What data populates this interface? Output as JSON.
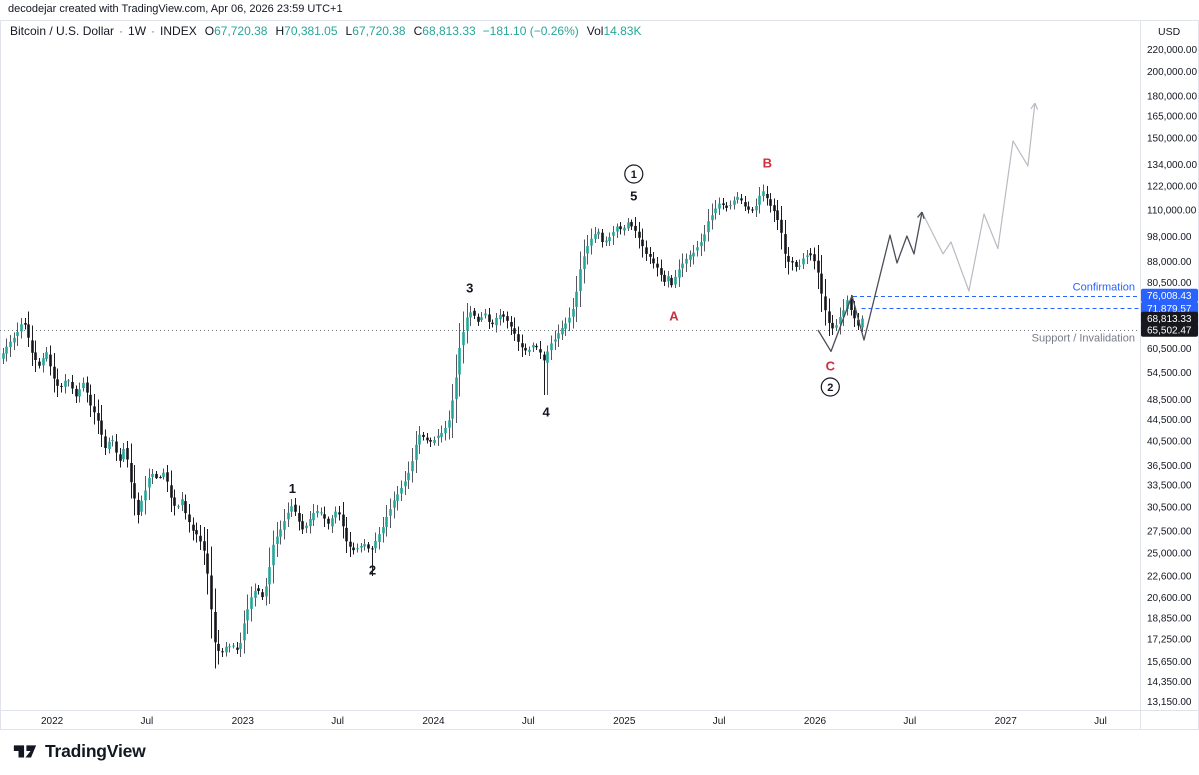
{
  "attribution": "decodejar created with TradingView.com, Apr 06, 2026 23:59 UTC+1",
  "header": {
    "symbol": "Bitcoin / U.S. Dollar",
    "separator": "·",
    "interval": "1W",
    "exchange": "INDEX",
    "ohlc": [
      {
        "label": "O",
        "value": "67,720.38"
      },
      {
        "label": "H",
        "value": "70,381.05"
      },
      {
        "label": "L",
        "value": "67,720.38"
      },
      {
        "label": "C",
        "value": "68,813.33"
      }
    ],
    "change": "−181.10 (−0.26%)",
    "vol_label": "Vol",
    "vol_value": "14.83K"
  },
  "price_axis": {
    "currency_label": "USD"
  },
  "annotations": {
    "confirmation_label": "Confirmation",
    "support_label": "Support / Invalidation"
  },
  "logo": {
    "text": "TradingView"
  },
  "chart_data": {
    "type": "candlestick",
    "symbol": "Bitcoin / U.S. Dollar",
    "timeframe": "1W",
    "scale": "logarithmic",
    "axis": {
      "t_left": 2021.727,
      "t_right": 2027.704,
      "price_top": 250000,
      "price_bottom": 11630
    },
    "y_ticks": [
      [
        "220,000.00",
        220000
      ],
      [
        "200,000.00",
        200000
      ],
      [
        "180,000.00",
        180000
      ],
      [
        "165,000.00",
        165000
      ],
      [
        "150,000.00",
        150000
      ],
      [
        "134,000.00",
        134000
      ],
      [
        "122,000.00",
        122000
      ],
      [
        "110,000.00",
        110000
      ],
      [
        "98,000.00",
        98000
      ],
      [
        "88,000.00",
        88000
      ],
      [
        "80,500.00",
        80500
      ],
      [
        "60,500.00",
        60500
      ],
      [
        "54,500.00",
        54500
      ],
      [
        "48,500.00",
        48500
      ],
      [
        "44,500.00",
        44500
      ],
      [
        "40,500.00",
        40500
      ],
      [
        "36,500.00",
        36500
      ],
      [
        "33,500.00",
        33500
      ],
      [
        "30,500.00",
        30500
      ],
      [
        "27,500.00",
        27500
      ],
      [
        "25,000.00",
        25000
      ],
      [
        "22,600.00",
        22600
      ],
      [
        "20,600.00",
        20600
      ],
      [
        "18,850.00",
        18850
      ],
      [
        "17,250.00",
        17250
      ],
      [
        "15,650.00",
        15650
      ],
      [
        "14,350.00",
        14350
      ],
      [
        "13,150.00",
        13150
      ]
    ],
    "x_ticks": [
      [
        "2022",
        2022
      ],
      [
        "Jul",
        2022.497
      ],
      [
        "2023",
        2023
      ],
      [
        "Jul",
        2023.497
      ],
      [
        "2024",
        2024
      ],
      [
        "Jul",
        2024.497
      ],
      [
        "2025",
        2025
      ],
      [
        "Jul",
        2025.497
      ],
      [
        "2026",
        2026
      ],
      [
        "Jul",
        2026.497
      ],
      [
        "2027",
        2027
      ],
      [
        "Jul",
        2027.497
      ]
    ],
    "badges": [
      {
        "label": "76,008.43",
        "price": 76008.43,
        "style": "blue"
      },
      {
        "label": "71,879.57",
        "price": 71879.57,
        "style": "blue"
      },
      {
        "label": "68,813.33",
        "price": 68813.33,
        "style": "dark"
      },
      {
        "label": "65,502.47",
        "price": 65502.47,
        "style": "dark"
      }
    ],
    "levels": [
      {
        "label": "Confirmation",
        "price": 76008.43,
        "start_t": 2026.2,
        "style": "dashed-blue"
      },
      {
        "label": "",
        "price": 71879.57,
        "start_t": 2026.245,
        "style": "dashed-blue"
      },
      {
        "label": "Support / Invalidation",
        "price": 65502.47,
        "start_t": 0,
        "style": "dotted-gray"
      }
    ],
    "wave_labels": [
      {
        "text": "1",
        "t": 2023.26,
        "price": 33000,
        "color": "dark",
        "circled": false
      },
      {
        "text": "2",
        "t": 2023.68,
        "price": 23200,
        "color": "dark",
        "circled": false
      },
      {
        "text": "3",
        "t": 2024.19,
        "price": 78500,
        "color": "dark",
        "circled": false
      },
      {
        "text": "4",
        "t": 2024.59,
        "price": 46000,
        "color": "dark",
        "circled": false
      },
      {
        "text": "1",
        "t": 2025.05,
        "price": 128500,
        "color": "dark",
        "circled": true
      },
      {
        "text": "5",
        "t": 2025.05,
        "price": 116900,
        "color": "dark",
        "circled": false
      },
      {
        "text": "A",
        "t": 2025.26,
        "price": 69600,
        "color": "red",
        "circled": false
      },
      {
        "text": "B",
        "t": 2025.75,
        "price": 134800,
        "color": "red",
        "circled": false
      },
      {
        "text": "C",
        "t": 2026.08,
        "price": 56100,
        "color": "red",
        "circled": false
      },
      {
        "text": "2",
        "t": 2026.08,
        "price": 51200,
        "color": "dark",
        "circled": true
      }
    ],
    "last_close": 68813.33,
    "price_path": [
      [
        2021.74,
        58000
      ],
      [
        2021.78,
        61500
      ],
      [
        2021.82,
        64100
      ],
      [
        2021.86,
        68900
      ],
      [
        2021.9,
        60100
      ],
      [
        2021.94,
        55600
      ],
      [
        2021.98,
        59600
      ],
      [
        2022.02,
        53300
      ],
      [
        2022.05,
        50500
      ],
      [
        2022.09,
        53300
      ],
      [
        2022.14,
        48800
      ],
      [
        2022.17,
        52800
      ],
      [
        2022.21,
        47500
      ],
      [
        2022.25,
        44400
      ],
      [
        2022.29,
        39000
      ],
      [
        2022.32,
        41800
      ],
      [
        2022.36,
        36600
      ],
      [
        2022.39,
        39900
      ],
      [
        2022.42,
        34300
      ],
      [
        2022.46,
        29500
      ],
      [
        2022.49,
        32100
      ],
      [
        2022.53,
        35500
      ],
      [
        2022.57,
        34300
      ],
      [
        2022.6,
        35500
      ],
      [
        2022.63,
        32100
      ],
      [
        2022.66,
        30100
      ],
      [
        2022.69,
        31700
      ],
      [
        2022.72,
        28800
      ],
      [
        2022.76,
        27200
      ],
      [
        2022.8,
        26000
      ],
      [
        2022.83,
        22200
      ],
      [
        2022.86,
        17100
      ],
      [
        2022.89,
        16100
      ],
      [
        2022.92,
        16600
      ],
      [
        2022.95,
        16800
      ],
      [
        2022.99,
        16400
      ],
      [
        2023.02,
        18700
      ],
      [
        2023.05,
        20400
      ],
      [
        2023.08,
        21500
      ],
      [
        2023.11,
        20600
      ],
      [
        2023.14,
        22200
      ],
      [
        2023.17,
        26000
      ],
      [
        2023.21,
        27600
      ],
      [
        2023.24,
        29500
      ],
      [
        2023.27,
        30800
      ],
      [
        2023.3,
        28800
      ],
      [
        2023.33,
        27500
      ],
      [
        2023.36,
        28800
      ],
      [
        2023.39,
        30000
      ],
      [
        2023.43,
        29500
      ],
      [
        2023.46,
        28100
      ],
      [
        2023.49,
        30000
      ],
      [
        2023.52,
        29500
      ],
      [
        2023.55,
        26400
      ],
      [
        2023.58,
        25300
      ],
      [
        2023.61,
        25500
      ],
      [
        2023.65,
        26000
      ],
      [
        2023.68,
        25100
      ],
      [
        2023.71,
        26400
      ],
      [
        2023.74,
        27600
      ],
      [
        2023.77,
        29500
      ],
      [
        2023.8,
        31100
      ],
      [
        2023.83,
        32800
      ],
      [
        2023.87,
        34600
      ],
      [
        2023.9,
        37300
      ],
      [
        2023.93,
        41800
      ],
      [
        2023.96,
        41000
      ],
      [
        2023.99,
        40200
      ],
      [
        2024.02,
        41000
      ],
      [
        2024.06,
        42200
      ],
      [
        2024.09,
        44400
      ],
      [
        2024.12,
        50500
      ],
      [
        2024.15,
        61500
      ],
      [
        2024.18,
        68400
      ],
      [
        2024.21,
        71400
      ],
      [
        2024.24,
        67800
      ],
      [
        2024.28,
        70800
      ],
      [
        2024.31,
        66100
      ],
      [
        2024.34,
        68900
      ],
      [
        2024.37,
        70100
      ],
      [
        2024.4,
        67800
      ],
      [
        2024.43,
        65200
      ],
      [
        2024.46,
        61500
      ],
      [
        2024.5,
        59600
      ],
      [
        2024.53,
        61500
      ],
      [
        2024.56,
        60100
      ],
      [
        2024.59,
        57000
      ],
      [
        2024.62,
        61500
      ],
      [
        2024.65,
        63300
      ],
      [
        2024.68,
        65500
      ],
      [
        2024.72,
        68900
      ],
      [
        2024.75,
        73100
      ],
      [
        2024.78,
        84900
      ],
      [
        2024.81,
        93400
      ],
      [
        2024.84,
        97400
      ],
      [
        2024.87,
        100900
      ],
      [
        2024.9,
        95000
      ],
      [
        2024.94,
        98700
      ],
      [
        2024.97,
        102700
      ],
      [
        2025.0,
        100000
      ],
      [
        2025.03,
        104500
      ],
      [
        2025.06,
        101800
      ],
      [
        2025.09,
        96600
      ],
      [
        2025.12,
        91800
      ],
      [
        2025.16,
        87900
      ],
      [
        2025.19,
        84900
      ],
      [
        2025.22,
        80600
      ],
      [
        2025.24,
        82700
      ],
      [
        2025.26,
        79200
      ],
      [
        2025.29,
        84200
      ],
      [
        2025.32,
        87900
      ],
      [
        2025.36,
        90600
      ],
      [
        2025.39,
        93400
      ],
      [
        2025.42,
        96600
      ],
      [
        2025.45,
        104500
      ],
      [
        2025.48,
        110000
      ],
      [
        2025.51,
        112900
      ],
      [
        2025.54,
        111000
      ],
      [
        2025.58,
        113900
      ],
      [
        2025.61,
        116400
      ],
      [
        2025.64,
        112400
      ],
      [
        2025.67,
        109000
      ],
      [
        2025.7,
        111900
      ],
      [
        2025.73,
        120000
      ],
      [
        2025.76,
        114900
      ],
      [
        2025.8,
        109000
      ],
      [
        2025.83,
        101800
      ],
      [
        2025.86,
        87900
      ],
      [
        2025.89,
        87900
      ],
      [
        2025.92,
        85600
      ],
      [
        2025.95,
        89400
      ],
      [
        2025.98,
        91800
      ],
      [
        2026.02,
        86400
      ],
      [
        2026.05,
        74600
      ],
      [
        2026.08,
        67800
      ],
      [
        2026.11,
        65500
      ],
      [
        2026.13,
        67800
      ],
      [
        2026.16,
        71400
      ],
      [
        2026.18,
        74600
      ],
      [
        2026.21,
        69900
      ],
      [
        2026.24,
        66000
      ],
      [
        2026.262,
        68813
      ]
    ],
    "long_wicks": [
      {
        "t": 2024.59,
        "price": 49500
      },
      {
        "t": 2023.68,
        "price": 22600
      }
    ],
    "forecast_primary": [
      [
        2026.016,
        65500
      ],
      [
        2026.084,
        59700
      ],
      [
        2026.194,
        76000
      ],
      [
        2026.257,
        62700
      ],
      [
        2026.393,
        98700
      ],
      [
        2026.43,
        87500
      ],
      [
        2026.482,
        98300
      ],
      [
        2026.519,
        91000
      ],
      [
        2026.561,
        109000
      ]
    ],
    "forecast_extended": [
      [
        2026.561,
        109000
      ],
      [
        2026.671,
        91000
      ],
      [
        2026.713,
        95800
      ],
      [
        2026.807,
        77500
      ],
      [
        2026.886,
        108100
      ],
      [
        2026.959,
        93100
      ],
      [
        2027.038,
        148300
      ],
      [
        2027.116,
        133100
      ],
      [
        2027.153,
        174600
      ]
    ],
    "colors": {
      "candle_up": "#26A69A",
      "candle_down": "#15171C",
      "wick_up": "#54575F",
      "wick_down": "#1A1C22",
      "accent_blue": "#2962FF",
      "badge_dark": "#16181D",
      "level_gray": "#73767F",
      "wave_red": "#CC2F3D",
      "text_dark": "#131722",
      "border": "#E0E3EB",
      "forecast_dark": "#4A4E57",
      "forecast_light": "#B8BBC2"
    }
  }
}
